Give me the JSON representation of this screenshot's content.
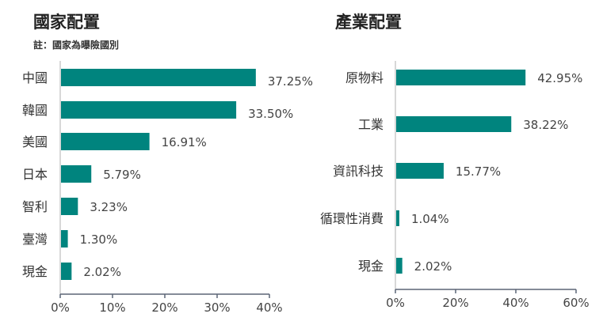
{
  "chart_data": [
    {
      "type": "bar",
      "orientation": "horizontal",
      "title": "國家配置",
      "subtitle": "註：國家為曝險國別",
      "categories": [
        "中國",
        "韓國",
        "美國",
        "日本",
        "智利",
        "臺灣",
        "現金"
      ],
      "values": [
        37.25,
        33.5,
        16.91,
        5.79,
        3.23,
        1.3,
        2.02
      ],
      "data_labels": [
        "37.25%",
        "33.50%",
        "16.91%",
        "5.79%",
        "3.23%",
        "1.30%",
        "2.02%"
      ],
      "xlim": [
        0,
        40
      ],
      "ticks": [
        "0%",
        "10%",
        "20%",
        "30%",
        "40%"
      ],
      "grid": false,
      "color": "#00847e"
    },
    {
      "type": "bar",
      "orientation": "horizontal",
      "title": "產業配置",
      "categories": [
        "原物料",
        "工業",
        "資訊科技",
        "循環性消費",
        "現金"
      ],
      "values": [
        42.95,
        38.22,
        15.77,
        1.04,
        2.02
      ],
      "data_labels": [
        "42.95%",
        "38.22%",
        "15.77%",
        "1.04%",
        "2.02%"
      ],
      "xlim": [
        0,
        60
      ],
      "ticks": [
        "0%",
        "20%",
        "40%",
        "60%"
      ],
      "grid": false,
      "color": "#00847e"
    }
  ]
}
